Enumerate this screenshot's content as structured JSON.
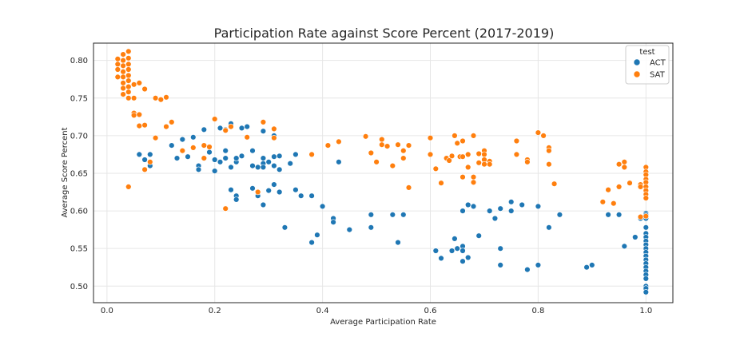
{
  "chart_data": {
    "type": "scatter",
    "title": "Participation Rate against Score Percent (2017-2019)",
    "xlabel": "Average Participation Rate",
    "ylabel": "Average Score Percent",
    "xlim": [
      -0.025,
      1.05
    ],
    "ylim": [
      0.478,
      0.823
    ],
    "x_ticks": [
      "0.0",
      "0.2",
      "0.4",
      "0.6",
      "0.8",
      "1.0"
    ],
    "y_ticks": [
      "0.50",
      "0.55",
      "0.60",
      "0.65",
      "0.70",
      "0.75",
      "0.80"
    ],
    "grid": true,
    "legend": {
      "title": "test",
      "position": "top-right"
    },
    "series": [
      {
        "name": "ACT",
        "color": "#1f77b4",
        "points": [
          [
            0.06,
            0.675
          ],
          [
            0.07,
            0.668
          ],
          [
            0.08,
            0.675
          ],
          [
            0.08,
            0.66
          ],
          [
            0.12,
            0.687
          ],
          [
            0.13,
            0.67
          ],
          [
            0.14,
            0.695
          ],
          [
            0.15,
            0.672
          ],
          [
            0.16,
            0.698
          ],
          [
            0.17,
            0.66
          ],
          [
            0.17,
            0.655
          ],
          [
            0.18,
            0.708
          ],
          [
            0.19,
            0.678
          ],
          [
            0.2,
            0.668
          ],
          [
            0.2,
            0.653
          ],
          [
            0.21,
            0.71
          ],
          [
            0.21,
            0.665
          ],
          [
            0.22,
            0.708
          ],
          [
            0.22,
            0.68
          ],
          [
            0.22,
            0.67
          ],
          [
            0.23,
            0.716
          ],
          [
            0.23,
            0.658
          ],
          [
            0.23,
            0.628
          ],
          [
            0.24,
            0.665
          ],
          [
            0.24,
            0.67
          ],
          [
            0.24,
            0.62
          ],
          [
            0.24,
            0.615
          ],
          [
            0.25,
            0.71
          ],
          [
            0.25,
            0.673
          ],
          [
            0.26,
            0.712
          ],
          [
            0.27,
            0.68
          ],
          [
            0.27,
            0.66
          ],
          [
            0.27,
            0.63
          ],
          [
            0.28,
            0.658
          ],
          [
            0.28,
            0.62
          ],
          [
            0.29,
            0.706
          ],
          [
            0.29,
            0.67
          ],
          [
            0.29,
            0.663
          ],
          [
            0.29,
            0.658
          ],
          [
            0.29,
            0.608
          ],
          [
            0.3,
            0.665
          ],
          [
            0.3,
            0.627
          ],
          [
            0.31,
            0.7
          ],
          [
            0.31,
            0.672
          ],
          [
            0.31,
            0.66
          ],
          [
            0.31,
            0.635
          ],
          [
            0.32,
            0.673
          ],
          [
            0.32,
            0.655
          ],
          [
            0.32,
            0.625
          ],
          [
            0.33,
            0.578
          ],
          [
            0.34,
            0.663
          ],
          [
            0.35,
            0.675
          ],
          [
            0.35,
            0.628
          ],
          [
            0.36,
            0.62
          ],
          [
            0.38,
            0.62
          ],
          [
            0.38,
            0.558
          ],
          [
            0.39,
            0.568
          ],
          [
            0.4,
            0.606
          ],
          [
            0.42,
            0.59
          ],
          [
            0.42,
            0.585
          ],
          [
            0.43,
            0.665
          ],
          [
            0.45,
            0.575
          ],
          [
            0.49,
            0.595
          ],
          [
            0.49,
            0.578
          ],
          [
            0.53,
            0.595
          ],
          [
            0.54,
            0.558
          ],
          [
            0.55,
            0.595
          ],
          [
            0.61,
            0.547
          ],
          [
            0.62,
            0.537
          ],
          [
            0.64,
            0.547
          ],
          [
            0.645,
            0.563
          ],
          [
            0.65,
            0.55
          ],
          [
            0.66,
            0.6
          ],
          [
            0.66,
            0.553
          ],
          [
            0.66,
            0.547
          ],
          [
            0.66,
            0.533
          ],
          [
            0.67,
            0.608
          ],
          [
            0.67,
            0.538
          ],
          [
            0.68,
            0.606
          ],
          [
            0.69,
            0.567
          ],
          [
            0.71,
            0.6
          ],
          [
            0.72,
            0.59
          ],
          [
            0.73,
            0.603
          ],
          [
            0.73,
            0.55
          ],
          [
            0.73,
            0.528
          ],
          [
            0.75,
            0.612
          ],
          [
            0.75,
            0.6
          ],
          [
            0.77,
            0.608
          ],
          [
            0.78,
            0.522
          ],
          [
            0.8,
            0.606
          ],
          [
            0.8,
            0.528
          ],
          [
            0.82,
            0.578
          ],
          [
            0.84,
            0.595
          ],
          [
            0.89,
            0.525
          ],
          [
            0.9,
            0.528
          ],
          [
            0.93,
            0.595
          ],
          [
            0.95,
            0.595
          ],
          [
            0.96,
            0.553
          ],
          [
            0.98,
            0.565
          ],
          [
            0.99,
            0.59
          ],
          [
            1.0,
            0.597
          ],
          [
            1.0,
            0.595
          ],
          [
            1.0,
            0.59
          ],
          [
            1.0,
            0.578
          ],
          [
            1.0,
            0.57
          ],
          [
            1.0,
            0.565
          ],
          [
            1.0,
            0.56
          ],
          [
            1.0,
            0.555
          ],
          [
            1.0,
            0.55
          ],
          [
            1.0,
            0.545
          ],
          [
            1.0,
            0.54
          ],
          [
            1.0,
            0.535
          ],
          [
            1.0,
            0.53
          ],
          [
            1.0,
            0.525
          ],
          [
            1.0,
            0.52
          ],
          [
            1.0,
            0.515
          ],
          [
            1.0,
            0.51
          ],
          [
            1.0,
            0.5
          ],
          [
            1.0,
            0.497
          ],
          [
            1.0,
            0.492
          ]
        ]
      },
      {
        "name": "SAT",
        "color": "#ff7f0e",
        "points": [
          [
            0.02,
            0.802
          ],
          [
            0.02,
            0.795
          ],
          [
            0.02,
            0.788
          ],
          [
            0.02,
            0.778
          ],
          [
            0.03,
            0.808
          ],
          [
            0.03,
            0.8
          ],
          [
            0.03,
            0.793
          ],
          [
            0.03,
            0.785
          ],
          [
            0.03,
            0.778
          ],
          [
            0.03,
            0.77
          ],
          [
            0.03,
            0.763
          ],
          [
            0.03,
            0.755
          ],
          [
            0.04,
            0.812
          ],
          [
            0.04,
            0.803
          ],
          [
            0.04,
            0.795
          ],
          [
            0.04,
            0.788
          ],
          [
            0.04,
            0.78
          ],
          [
            0.04,
            0.773
          ],
          [
            0.04,
            0.765
          ],
          [
            0.04,
            0.758
          ],
          [
            0.04,
            0.75
          ],
          [
            0.04,
            0.632
          ],
          [
            0.05,
            0.768
          ],
          [
            0.05,
            0.75
          ],
          [
            0.05,
            0.73
          ],
          [
            0.05,
            0.727
          ],
          [
            0.06,
            0.77
          ],
          [
            0.06,
            0.728
          ],
          [
            0.06,
            0.713
          ],
          [
            0.07,
            0.762
          ],
          [
            0.07,
            0.714
          ],
          [
            0.07,
            0.655
          ],
          [
            0.08,
            0.665
          ],
          [
            0.09,
            0.75
          ],
          [
            0.09,
            0.697
          ],
          [
            0.1,
            0.748
          ],
          [
            0.11,
            0.751
          ],
          [
            0.11,
            0.712
          ],
          [
            0.12,
            0.718
          ],
          [
            0.14,
            0.68
          ],
          [
            0.16,
            0.684
          ],
          [
            0.18,
            0.687
          ],
          [
            0.18,
            0.67
          ],
          [
            0.19,
            0.685
          ],
          [
            0.2,
            0.722
          ],
          [
            0.22,
            0.603
          ],
          [
            0.22,
            0.707
          ],
          [
            0.23,
            0.712
          ],
          [
            0.26,
            0.698
          ],
          [
            0.28,
            0.625
          ],
          [
            0.29,
            0.718
          ],
          [
            0.31,
            0.709
          ],
          [
            0.31,
            0.697
          ],
          [
            0.38,
            0.675
          ],
          [
            0.41,
            0.687
          ],
          [
            0.43,
            0.692
          ],
          [
            0.48,
            0.699
          ],
          [
            0.49,
            0.677
          ],
          [
            0.5,
            0.665
          ],
          [
            0.51,
            0.695
          ],
          [
            0.51,
            0.688
          ],
          [
            0.52,
            0.686
          ],
          [
            0.53,
            0.66
          ],
          [
            0.54,
            0.688
          ],
          [
            0.55,
            0.68
          ],
          [
            0.55,
            0.67
          ],
          [
            0.56,
            0.687
          ],
          [
            0.56,
            0.631
          ],
          [
            0.6,
            0.697
          ],
          [
            0.6,
            0.675
          ],
          [
            0.61,
            0.656
          ],
          [
            0.62,
            0.637
          ],
          [
            0.63,
            0.67
          ],
          [
            0.635,
            0.667
          ],
          [
            0.64,
            0.673
          ],
          [
            0.645,
            0.7
          ],
          [
            0.65,
            0.69
          ],
          [
            0.655,
            0.672
          ],
          [
            0.66,
            0.693
          ],
          [
            0.66,
            0.672
          ],
          [
            0.66,
            0.645
          ],
          [
            0.67,
            0.675
          ],
          [
            0.67,
            0.658
          ],
          [
            0.68,
            0.7
          ],
          [
            0.68,
            0.645
          ],
          [
            0.68,
            0.638
          ],
          [
            0.69,
            0.676
          ],
          [
            0.69,
            0.664
          ],
          [
            0.7,
            0.68
          ],
          [
            0.7,
            0.675
          ],
          [
            0.7,
            0.668
          ],
          [
            0.7,
            0.662
          ],
          [
            0.71,
            0.666
          ],
          [
            0.71,
            0.662
          ],
          [
            0.76,
            0.693
          ],
          [
            0.76,
            0.675
          ],
          [
            0.78,
            0.668
          ],
          [
            0.78,
            0.665
          ],
          [
            0.8,
            0.704
          ],
          [
            0.81,
            0.7
          ],
          [
            0.82,
            0.684
          ],
          [
            0.82,
            0.68
          ],
          [
            0.82,
            0.662
          ],
          [
            0.83,
            0.636
          ],
          [
            0.92,
            0.612
          ],
          [
            0.93,
            0.628
          ],
          [
            0.94,
            0.61
          ],
          [
            0.95,
            0.662
          ],
          [
            0.95,
            0.632
          ],
          [
            0.96,
            0.665
          ],
          [
            0.96,
            0.658
          ],
          [
            0.97,
            0.637
          ],
          [
            0.99,
            0.635
          ],
          [
            0.99,
            0.632
          ],
          [
            0.99,
            0.592
          ],
          [
            1.0,
            0.658
          ],
          [
            1.0,
            0.652
          ],
          [
            1.0,
            0.648
          ],
          [
            1.0,
            0.642
          ],
          [
            1.0,
            0.638
          ],
          [
            1.0,
            0.632
          ],
          [
            1.0,
            0.627
          ],
          [
            1.0,
            0.622
          ],
          [
            1.0,
            0.617
          ],
          [
            1.0,
            0.593
          ]
        ]
      }
    ]
  }
}
